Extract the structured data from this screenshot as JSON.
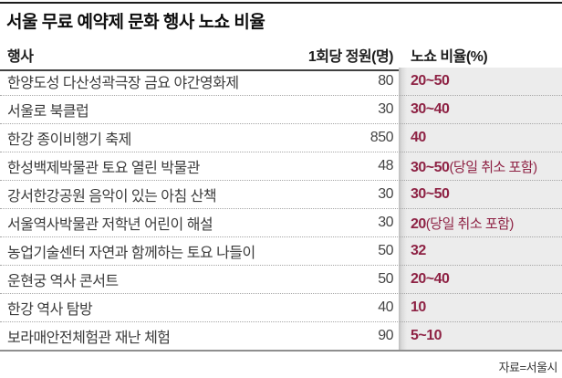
{
  "colors": {
    "accent": "#8e2244",
    "stripe_bg": "#ececec",
    "stripe_edge": "#bdbdbd"
  },
  "chart_data": {
    "type": "table",
    "title": "서울 무료 예약제 문화 행사 노쇼 비율",
    "columns": [
      "행사",
      "1회당 정원(명)",
      "노쇼 비율(%)"
    ],
    "rows": [
      {
        "event": "한양도성 다산성곽극장 금요 야간영화제",
        "capacity": 80,
        "rate": "20~50",
        "note": ""
      },
      {
        "event": "서울로 북클럽",
        "capacity": 30,
        "rate": "30~40",
        "note": ""
      },
      {
        "event": "한강 종이비행기 축제",
        "capacity": 850,
        "rate": "40",
        "note": ""
      },
      {
        "event": "한성백제박물관 토요 열린 박물관",
        "capacity": 48,
        "rate": "30~50",
        "note": "(당일 취소 포함)"
      },
      {
        "event": "강서한강공원 음악이 있는 아침 산책",
        "capacity": 30,
        "rate": "30~50",
        "note": ""
      },
      {
        "event": "서울역사박물관 저학년 어린이 해설",
        "capacity": 30,
        "rate": "20",
        "note": "(당일 취소 포함)"
      },
      {
        "event": "농업기술센터 자연과 함께하는 토요 나들이",
        "capacity": 50,
        "rate": "32",
        "note": ""
      },
      {
        "event": "운현궁 역사 콘서트",
        "capacity": 50,
        "rate": "20~40",
        "note": ""
      },
      {
        "event": "한강 역사 탐방",
        "capacity": 40,
        "rate": "10",
        "note": ""
      },
      {
        "event": "보라매안전체험관 재난 체험",
        "capacity": 90,
        "rate": "5~10",
        "note": ""
      }
    ],
    "source": "자료=서울시"
  }
}
